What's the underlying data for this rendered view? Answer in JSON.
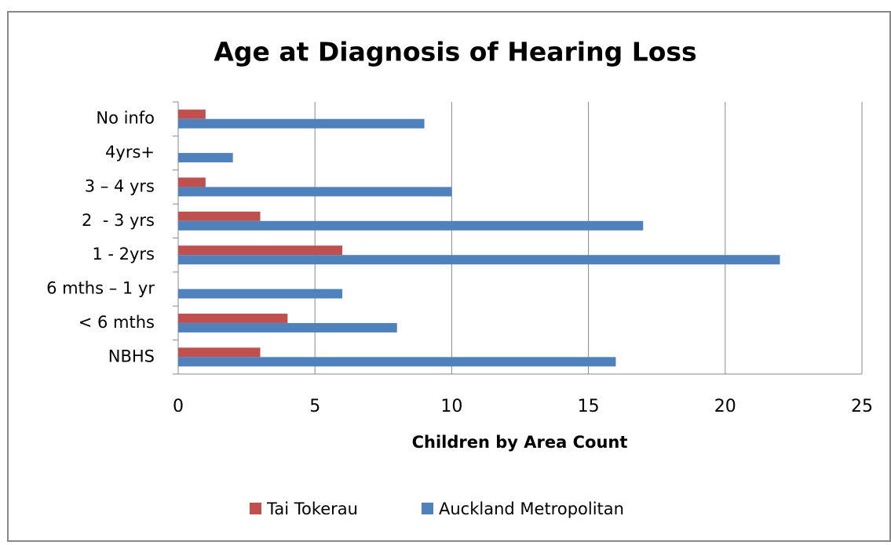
{
  "chart_data": {
    "type": "hbar",
    "title": "Age at Diagnosis of Hearing Loss",
    "x_label": "Children by Area Count",
    "categories": [
      "NBHS",
      "< 6 mths",
      "6 mths – 1 yr",
      "1 - 2yrs",
      "2  - 3 yrs",
      "3 – 4 yrs",
      "4yrs+",
      "No info"
    ],
    "series": [
      {
        "name": "Tai Tokerau",
        "color": "#c0504d",
        "values": [
          3,
          4,
          0,
          6,
          3,
          1,
          0,
          1
        ]
      },
      {
        "name": "Auckland Metropolitan",
        "color": "#4f81bd",
        "values": [
          16,
          8,
          6,
          22,
          17,
          10,
          2,
          9
        ]
      }
    ],
    "xlim": [
      0,
      25
    ],
    "xticks": [
      0,
      5,
      10,
      15,
      20,
      25
    ],
    "grid": true,
    "legend": "bottom"
  }
}
